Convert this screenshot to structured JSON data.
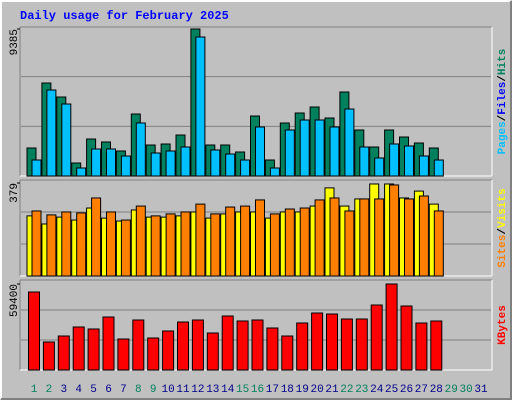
{
  "title": "Daily usage for February 2025",
  "separator": "/",
  "chart_data": [
    {
      "type": "bar",
      "ylim": [
        0,
        9385
      ],
      "yticks": [
        9385
      ],
      "legend": [
        {
          "text": "Pages",
          "color": "#00c0ff"
        },
        {
          "text": "Files",
          "color": "#0000ff"
        },
        {
          "text": "Hits",
          "color": "#00805c"
        }
      ],
      "series": [
        {
          "name": "Hits",
          "color": "#00805c",
          "values": [
            1788,
            5937,
            5043,
            830,
            2362,
            2171,
            1596,
            3958,
            1979,
            2043,
            2617,
            9385,
            1979,
            1979,
            1532,
            3830,
            1021,
            3384,
            4022,
            4405,
            3703,
            5363,
            2937,
            1851,
            2937,
            2490,
            2107,
            1788,
            null,
            null,
            null
          ]
        },
        {
          "name": "Pages",
          "color": "#00c0ff",
          "values": [
            1021,
            5490,
            4596,
            511,
            1724,
            1724,
            1277,
            3384,
            1468,
            1596,
            1851,
            8874,
            1660,
            1404,
            1021,
            3128,
            511,
            2937,
            3575,
            3575,
            3128,
            4277,
            1851,
            1149,
            2043,
            1915,
            1277,
            1021,
            null,
            null,
            null
          ]
        }
      ]
    },
    {
      "type": "bar",
      "ylim": [
        0,
        379
      ],
      "yticks": [
        379
      ],
      "legend": [
        {
          "text": "Sites",
          "color": "#ff8000"
        },
        {
          "text": "Visits",
          "color": "#ffff00"
        }
      ],
      "series": [
        {
          "name": "Visits",
          "color": "#ffff00",
          "values": [
            245,
            212,
            240,
            228,
            277,
            236,
            224,
            269,
            240,
            240,
            245,
            261,
            236,
            253,
            261,
            261,
            236,
            261,
            261,
            285,
            359,
            285,
            314,
            375,
            375,
            318,
            346,
            293,
            null,
            null,
            null
          ]
        },
        {
          "name": "Sites",
          "color": "#ff8000",
          "values": [
            265,
            249,
            261,
            257,
            318,
            261,
            228,
            285,
            245,
            253,
            261,
            293,
            253,
            281,
            285,
            310,
            253,
            273,
            277,
            310,
            318,
            265,
            314,
            314,
            371,
            314,
            326,
            265,
            null,
            null,
            null
          ]
        }
      ]
    },
    {
      "type": "bar",
      "ylim": [
        0,
        59400
      ],
      "yticks": [
        59400
      ],
      "legend": [
        {
          "text": "KBytes",
          "color": "#ff0000"
        }
      ],
      "series": [
        {
          "name": "KBytes",
          "color": "#ff0000",
          "values": [
            53875,
            19340,
            23484,
            29700,
            28319,
            36607,
            21412,
            34535,
            22102,
            26937,
            33154,
            34535,
            25556,
            37298,
            33844,
            34535,
            29009,
            23484,
            32463,
            39370,
            38679,
            35226,
            35226,
            44896,
            59400,
            44205,
            32463,
            33844,
            null,
            null,
            null
          ]
        }
      ],
      "categories": [
        "1",
        "2",
        "3",
        "4",
        "5",
        "6",
        "7",
        "8",
        "9",
        "10",
        "11",
        "12",
        "13",
        "14",
        "15",
        "16",
        "17",
        "18",
        "19",
        "20",
        "21",
        "22",
        "23",
        "24",
        "25",
        "26",
        "27",
        "28",
        "29",
        "30",
        "31"
      ],
      "category_colors": [
        "#00805c",
        "#00805c",
        "#00008b",
        "#00008b",
        "#00008b",
        "#00008b",
        "#00008b",
        "#00805c",
        "#00805c",
        "#00008b",
        "#00008b",
        "#00008b",
        "#00008b",
        "#00008b",
        "#00805c",
        "#00805c",
        "#00008b",
        "#00008b",
        "#00008b",
        "#00008b",
        "#00008b",
        "#00805c",
        "#00805c",
        "#00008b",
        "#00008b",
        "#00008b",
        "#00008b",
        "#00008b",
        "#00805c",
        "#00805c",
        "#00008b"
      ]
    }
  ]
}
